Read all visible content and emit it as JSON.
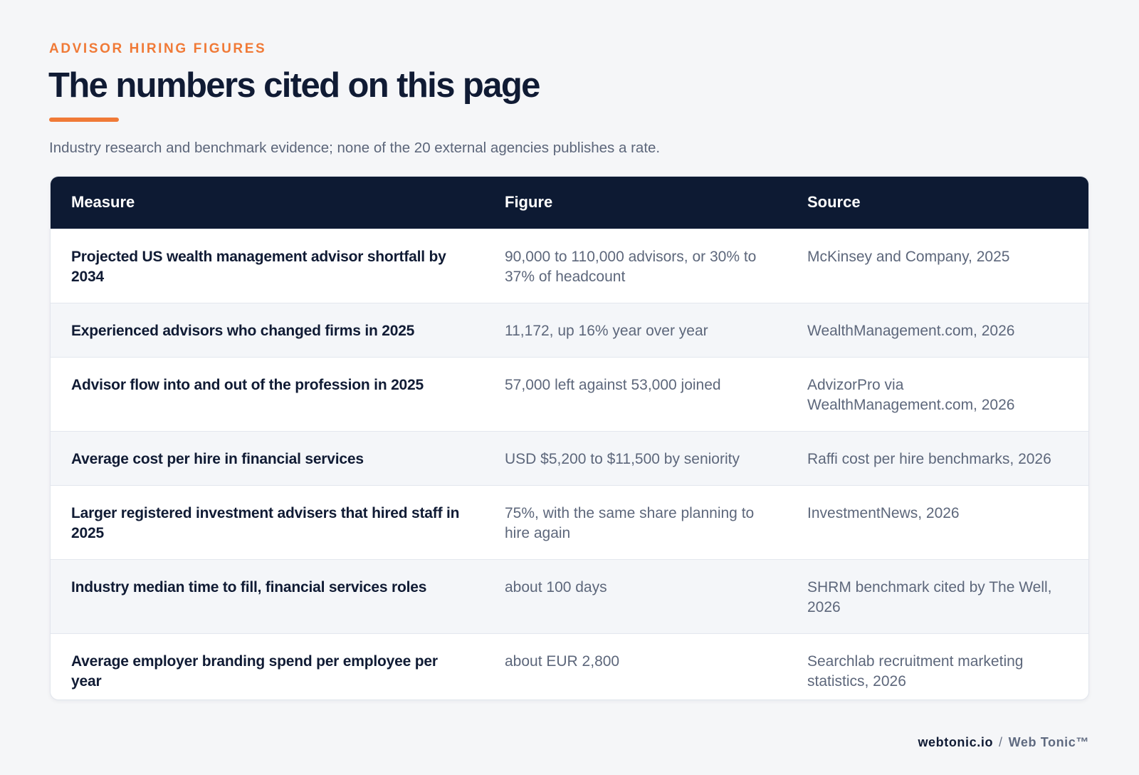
{
  "header": {
    "eyebrow": "ADVISOR HIRING FIGURES",
    "title": "The numbers cited on this page",
    "subtitle": "Industry research and benchmark evidence; none of the 20 external agencies publishes a rate."
  },
  "table": {
    "columns": [
      "Measure",
      "Figure",
      "Source"
    ],
    "rows": [
      {
        "measure": "Projected US wealth management advisor shortfall by 2034",
        "figure": "90,000 to 110,000 advisors, or 30% to 37% of headcount",
        "source": "McKinsey and Company, 2025"
      },
      {
        "measure": "Experienced advisors who changed firms in 2025",
        "figure": "11,172, up 16% year over year",
        "source": "WealthManagement.com, 2026"
      },
      {
        "measure": "Advisor flow into and out of the profession in 2025",
        "figure": "57,000 left against 53,000 joined",
        "source": "AdvizorPro via WealthManagement.com, 2026"
      },
      {
        "measure": "Average cost per hire in financial services",
        "figure": "USD $5,200 to $11,500 by seniority",
        "source": "Raffi cost per hire benchmarks, 2026"
      },
      {
        "measure": "Larger registered investment advisers that hired staff in 2025",
        "figure": "75%, with the same share planning to hire again",
        "source": "InvestmentNews, 2026"
      },
      {
        "measure": "Industry median time to fill, financial services roles",
        "figure": "about 100 days",
        "source": "SHRM benchmark cited by The Well, 2026"
      },
      {
        "measure": "Average employer branding spend per employee per year",
        "figure": "about EUR 2,800",
        "source": "Searchlab recruitment marketing statistics, 2026"
      }
    ]
  },
  "footer": {
    "domain": "webtonic.io",
    "separator": "/",
    "brand": "Web Tonic™"
  },
  "colors": {
    "accent": "#f07a37",
    "header_bg": "#0d1a33",
    "title": "#101b34",
    "muted_text": "#5d677b",
    "page_bg": "#f5f6f8",
    "alt_row_bg": "#f4f6f9"
  }
}
